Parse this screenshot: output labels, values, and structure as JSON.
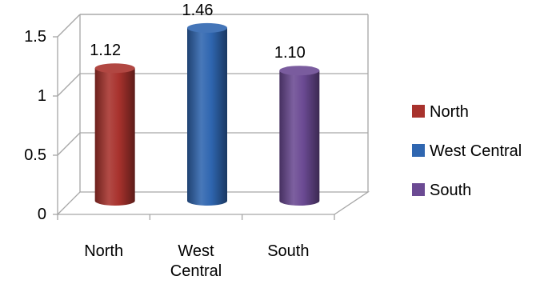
{
  "chart_data": {
    "type": "bar",
    "style": "3d-cylinder",
    "categories": [
      "North",
      "West Central",
      "South"
    ],
    "category_tick_labels": [
      [
        "North"
      ],
      [
        "West",
        "Central"
      ],
      [
        "South"
      ]
    ],
    "values": [
      1.12,
      1.46,
      1.1
    ],
    "data_labels": [
      "1.12",
      "1.46",
      "1.10"
    ],
    "colors": [
      "#a8322d",
      "#2f66b0",
      "#6b4a93"
    ],
    "yticks": [
      "0",
      "0.5",
      "1",
      "1.5"
    ],
    "ylim": [
      0,
      1.5
    ],
    "grid": true,
    "legend_position": "right",
    "legend": [
      {
        "label": "North",
        "color": "#a8322d"
      },
      {
        "label": "West Central",
        "color": "#2f66b0"
      },
      {
        "label": "South",
        "color": "#6b4a93"
      }
    ]
  }
}
